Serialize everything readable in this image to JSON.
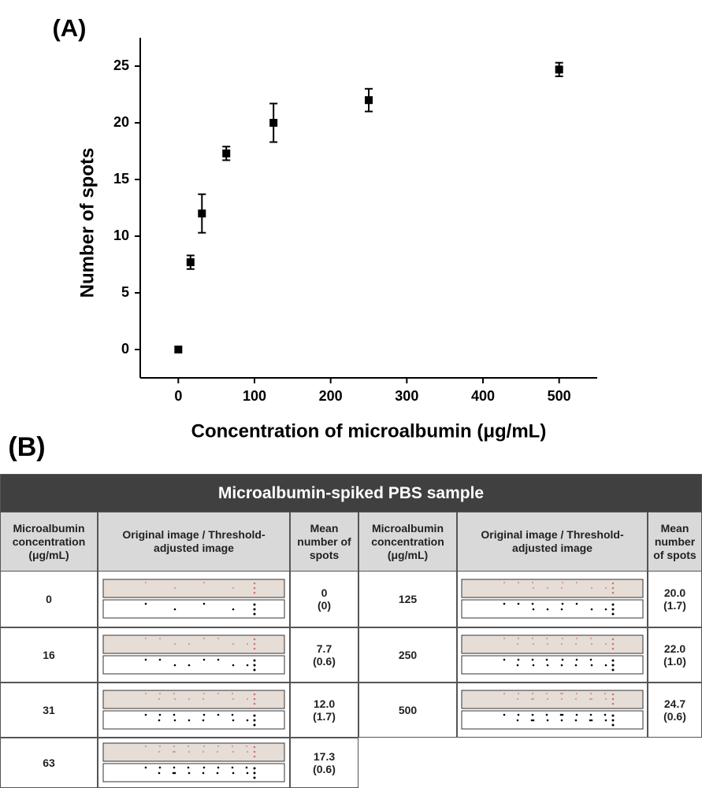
{
  "panel_labels": [
    "(A)",
    "(B)"
  ],
  "chart_data": {
    "type": "scatter",
    "xlabel": "Concentration of microalbumin (μg/mL)",
    "ylabel": "Number of spots",
    "x": [
      0,
      16,
      31,
      63,
      125,
      250,
      500
    ],
    "values": [
      0,
      7.7,
      12.0,
      17.3,
      20.0,
      22.0,
      24.7
    ],
    "errors": [
      0,
      0.6,
      1.7,
      0.6,
      1.7,
      1.0,
      0.6
    ],
    "color": "#000000",
    "xlim": [
      -50,
      550
    ],
    "xticks": [
      0,
      100,
      200,
      300,
      400,
      500
    ],
    "ylim": [
      -2.5,
      27.5
    ],
    "yticks": [
      0,
      5,
      10,
      15,
      20,
      25
    ]
  },
  "table": {
    "title": "Microalbumin-spiked PBS sample",
    "headers": [
      "Microalbumin concentration (μg/mL)",
      "Original image / Threshold-adjusted image",
      "Mean number of spots",
      "Microalbumin concentration (μg/mL)",
      "Original image / Threshold-adjusted image",
      "Mean number of spots"
    ],
    "rows": [
      [
        "0",
        "0",
        "(0)",
        "125",
        "20.0",
        "(1.7)"
      ],
      [
        "16",
        "7.7",
        "(0.6)",
        "250",
        "22.0",
        "(1.0)"
      ],
      [
        "31",
        "12.0",
        "(1.7)",
        "500",
        "24.7",
        "(0.6)"
      ],
      [
        "63",
        "17.3",
        "(0.6)"
      ]
    ]
  }
}
